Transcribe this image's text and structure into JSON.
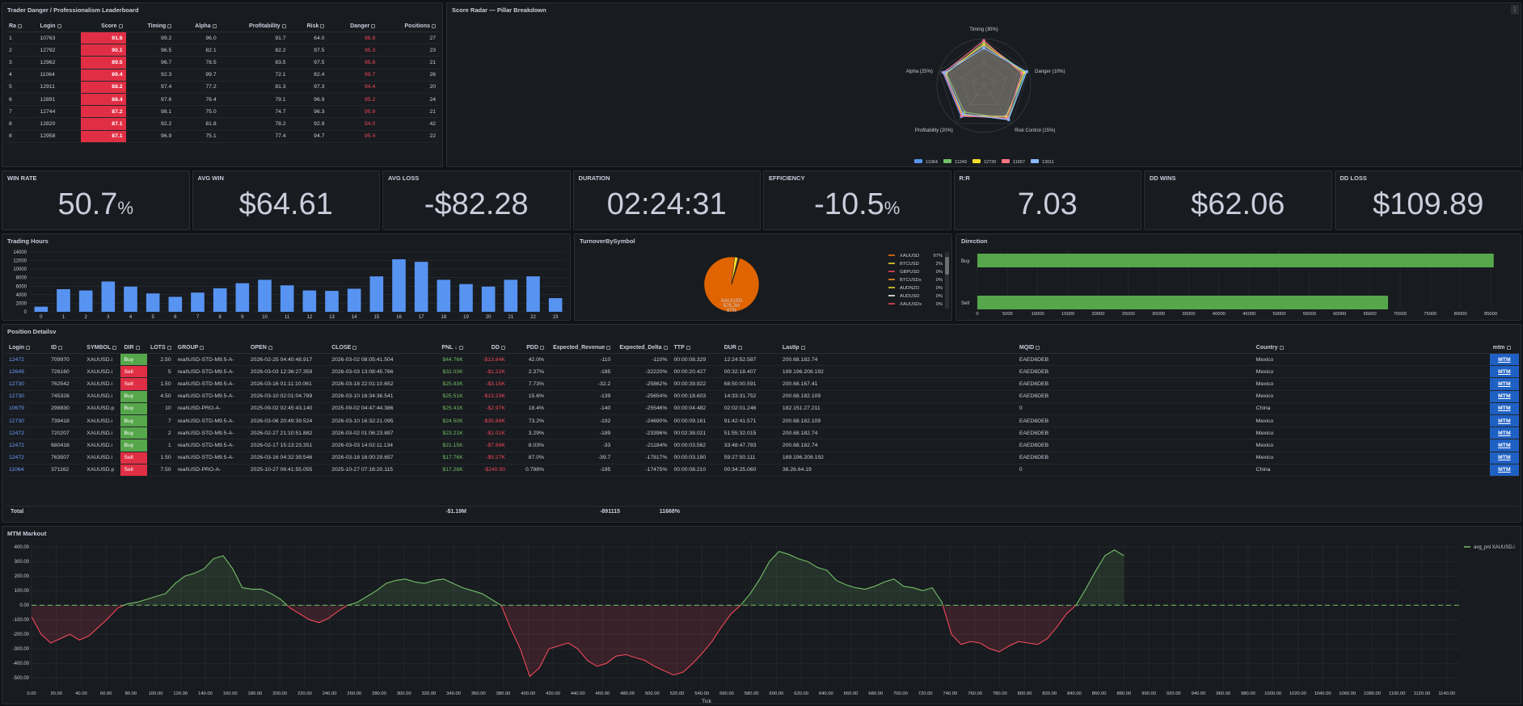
{
  "leaderboard": {
    "title": "Trader Danger / Professionalism Leaderboard",
    "columns": [
      "Ra",
      "Login",
      "Score",
      "Timing",
      "Alpha",
      "Profitability",
      "Risk",
      "Danger",
      "Positions"
    ],
    "rows": [
      [
        "1",
        "10763",
        "91.6",
        "99.2",
        "96.0",
        "91.7",
        "64.0",
        "98.8",
        "27"
      ],
      [
        "2",
        "12792",
        "90.1",
        "96.5",
        "82.1",
        "82.2",
        "97.5",
        "95.3",
        "23"
      ],
      [
        "3",
        "12962",
        "89.5",
        "96.7",
        "78.5",
        "83.5",
        "97.5",
        "95.8",
        "21"
      ],
      [
        "4",
        "11064",
        "89.4",
        "92.3",
        "99.7",
        "72.1",
        "82.4",
        "99.7",
        "26"
      ],
      [
        "5",
        "12911",
        "88.2",
        "97.4",
        "77.2",
        "81.3",
        "97.3",
        "94.4",
        "20"
      ],
      [
        "6",
        "12891",
        "88.4",
        "97.6",
        "76.4",
        "79.1",
        "96.9",
        "95.2",
        "24"
      ],
      [
        "7",
        "12744",
        "87.2",
        "98.1",
        "75.0",
        "74.7",
        "96.3",
        "95.9",
        "21"
      ],
      [
        "8",
        "12820",
        "87.1",
        "92.2",
        "81.8",
        "78.2",
        "92.9",
        "54.0",
        "42"
      ],
      [
        "8",
        "12958",
        "87.1",
        "96.9",
        "75.1",
        "77.4",
        "94.7",
        "95.4",
        "22"
      ]
    ],
    "colors": {
      "score_bg": "#e02f44",
      "danger_text": "#f2495c"
    }
  },
  "radar": {
    "title": "Score Radar — Pillar Breakdown",
    "axes": [
      "Timing (30%)",
      "Danger (10%)",
      "Risk Control (15%)",
      "Profitability (20%)",
      "Alpha (25%)"
    ],
    "legend": [
      {
        "name": "11064",
        "color": "#5794f2"
      },
      {
        "name": "11249",
        "color": "#73bf69"
      },
      {
        "name": "12730",
        "color": "#fade2a"
      },
      {
        "name": "11657",
        "color": "#ff7383"
      },
      {
        "name": "13011",
        "color": "#8ab8ff"
      }
    ],
    "series": [
      {
        "name": "11064",
        "color": "#5794f2",
        "values": [
          0.85,
          0.95,
          0.8,
          0.82,
          0.92
        ]
      },
      {
        "name": "11249",
        "color": "#73bf69",
        "values": [
          0.92,
          0.92,
          0.88,
          0.7,
          0.84
        ]
      },
      {
        "name": "12730",
        "color": "#fade2a",
        "values": [
          0.88,
          0.9,
          0.82,
          0.78,
          0.86
        ]
      },
      {
        "name": "11657",
        "color": "#ff7383",
        "values": [
          0.96,
          0.85,
          0.86,
          0.8,
          0.9
        ]
      },
      {
        "name": "13011",
        "color": "#8ab8ff",
        "values": [
          0.8,
          0.96,
          0.9,
          0.75,
          0.88
        ]
      }
    ]
  },
  "stats": [
    {
      "label": "WIN RATE",
      "value": "50.7",
      "unit": "%"
    },
    {
      "label": "AVG WIN",
      "value": "$64.61",
      "unit": ""
    },
    {
      "label": "AVG LOSS",
      "value": "-$82.28",
      "unit": ""
    },
    {
      "label": "DURATION",
      "value": "02:24:31",
      "unit": ""
    },
    {
      "label": "EFFICIENCY",
      "value": "-10.5",
      "unit": "%"
    },
    {
      "label": "R:R",
      "value": "7.03",
      "unit": ""
    },
    {
      "label": "DD WINS",
      "value": "$62.06",
      "unit": ""
    },
    {
      "label": "DD LOSS",
      "value": "$109.89",
      "unit": ""
    }
  ],
  "trading_hours": {
    "title": "Trading Hours",
    "chart_data": {
      "type": "bar",
      "categories": [
        "0",
        "1",
        "2",
        "3",
        "4",
        "5",
        "6",
        "7",
        "8",
        "9",
        "10",
        "11",
        "12",
        "13",
        "14",
        "15",
        "16",
        "17",
        "18",
        "19",
        "20",
        "21",
        "22",
        "23"
      ],
      "values": [
        1200,
        5300,
        5000,
        7100,
        5900,
        4300,
        3500,
        4500,
        5500,
        6700,
        7500,
        6200,
        5000,
        4900,
        5400,
        8300,
        12300,
        11700,
        7500,
        6500,
        5900,
        7500,
        8300,
        3200
      ],
      "yticks": [
        "0",
        "2000",
        "4000",
        "6000",
        "8000",
        "10000",
        "12000",
        "14000"
      ],
      "ylim": [
        0,
        14000
      ],
      "color": "#5794f2"
    }
  },
  "turnover": {
    "title": "TurnoverBySymbol",
    "center_label": "XAUUSD",
    "center_value": "$76.2M",
    "center_pct": "97%",
    "chart_data": {
      "type": "pie",
      "labels": [
        "XAUUSD",
        "BTCUSD",
        "GBPUSD",
        "BTCUSDx",
        "AUDNZD",
        "AUDUSD",
        "XAUUSDx"
      ],
      "values": [
        97,
        2,
        0.3,
        0.2,
        0.2,
        0.2,
        0.1
      ]
    },
    "legend": [
      {
        "name": "XAUUSD",
        "pct": "97%",
        "color": "#ff780a"
      },
      {
        "name": "BTCUSD",
        "pct": "2%",
        "color": "#fade2a"
      },
      {
        "name": "GBPUSD",
        "pct": "0%",
        "color": "#f2495c"
      },
      {
        "name": "BTCUSDx",
        "pct": "0%",
        "color": "#ff9830"
      },
      {
        "name": "AUDNZD",
        "pct": "0%",
        "color": "#fade2a"
      },
      {
        "name": "AUDUSD",
        "pct": "0%",
        "color": "#ffffff"
      },
      {
        "name": "XAUUSDx",
        "pct": "0%",
        "color": "#f2495c"
      }
    ]
  },
  "direction": {
    "title": "Direction",
    "chart_data": {
      "type": "bar",
      "categories": [
        "Buy",
        "Sell"
      ],
      "values": [
        85500,
        68000
      ],
      "xticks": [
        "0",
        "5000",
        "10000",
        "15000",
        "20000",
        "25000",
        "30000",
        "35000",
        "40000",
        "45000",
        "50000",
        "55000",
        "60000",
        "65000",
        "70000",
        "75000",
        "80000",
        "85000"
      ],
      "xlim": [
        0,
        87000
      ],
      "color": "#56a64b"
    }
  },
  "positions": {
    "title": "Position Detailsv",
    "columns": [
      "Login",
      "ID",
      "SYMBOL",
      "DIR",
      "LOTS",
      "GROUP",
      "OPEN",
      "CLOSE",
      "PNL",
      "DD",
      "PDD",
      "Expected_Revenue",
      "Expected_Delta",
      "TTP",
      "DUR",
      "LastIp",
      "MQID",
      "Country",
      "mtm"
    ],
    "rows": [
      [
        "12472",
        "709970",
        "XAUUSD.i",
        "Buy",
        "2.50",
        "real\\USD-STD-M9.5-A-",
        "2026-02-25 04:40:48.917",
        "2026-03-02 08:05:41.504",
        "$44.76K",
        "-$13.84K",
        "42.0%",
        "-110",
        "-110%",
        "00:00:08.329",
        "12:24:52.587",
        "200.68.182.74",
        "EAED6DEB",
        "Mexico",
        "MTM"
      ],
      [
        "12649",
        "726160",
        "XAUUSD.i",
        "Sell",
        "5",
        "real\\USD-STD-M9.5-A-",
        "2026-03-03 12:36:27.359",
        "2026-03-03 13:08:45.766",
        "$32.03K",
        "-$1.22K",
        "2.37%",
        "-185",
        "-32220%",
        "00:00:20.427",
        "00:32:18.407",
        "189.196.208.192",
        "EAED6DEB",
        "Mexico",
        "MTM"
      ],
      [
        "12730",
        "762542",
        "XAUUSD.i",
        "Sell",
        "1.50",
        "real\\USD-STD-M9.5-A-",
        "2026-03-16 01:11:10.061",
        "2026-03-18 22:01:10.652",
        "$25.83K",
        "-$3.15K",
        "7.73%",
        "-32.2",
        "-25862%",
        "00:00:39.922",
        "68:50:00.591",
        "200.68.167.41",
        "EAED6DEB",
        "Mexico",
        "MTM"
      ],
      [
        "12730",
        "745328",
        "XAUUSD.i",
        "Buy",
        "4.50",
        "real\\USD-STD-M9.5-A-",
        "2026-03-10 02:01:04.789",
        "2026-03-10 16:34:36.541",
        "$25.51K",
        "-$13.23K",
        "15.6%",
        "-139",
        "-25654%",
        "00:00:18.603",
        "14:33:31.752",
        "200.68.182.109",
        "EAED6DEB",
        "Mexico",
        "MTM"
      ],
      [
        "10679",
        "298830",
        "XAUUSD.p",
        "Buy",
        "10",
        "real\\USD-PRO-A-",
        "2025-09-02 02:45:43.140",
        "2025-09-02 04:47:44.386",
        "$25.41K",
        "-$2.97K",
        "18.4%",
        "-140",
        "-25546%",
        "00:00:04.482",
        "02:02:01.246",
        "182.151.27.211",
        "0",
        "China",
        "MTM"
      ],
      [
        "12730",
        "739418",
        "XAUUSD.i",
        "Buy",
        "7",
        "real\\USD-STD-M9.5-A-",
        "2026-03-06 20:49:39.524",
        "2026-03-10 16:32:21.095",
        "$24.50K",
        "-$35.89K",
        "73.2%",
        "-192",
        "-24690%",
        "00:00:09.161",
        "91:42:41.571",
        "200.68.182.109",
        "EAED6DEB",
        "Mexico",
        "MTM"
      ],
      [
        "12472",
        "720207",
        "XAUUSD.i",
        "Buy",
        "2",
        "real\\USD-STD-M9.5-A-",
        "2026-02-27 21:10:51.882",
        "2026-03-02 01:06:23.897",
        "$23.21K",
        "-$1.01K",
        "3.29%",
        "-189",
        "-23396%",
        "00:02:38.021",
        "51:55:32.015",
        "200.68.182.74",
        "EAED6DEB",
        "Mexico",
        "MTM"
      ],
      [
        "12472",
        "680416",
        "XAUUSD.i",
        "Buy",
        "1",
        "real\\USD-STD-M9.5-A-",
        "2026-02-17 15:13:23.351",
        "2026-03-03 14:02:11.134",
        "$21.15K",
        "-$7.69K",
        "8.03%",
        "-33",
        "-21184%",
        "00:00:03.562",
        "33:48:47.783",
        "200.68.182.74",
        "EAED6DEB",
        "Mexico",
        "MTM"
      ],
      [
        "12472",
        "763507",
        "XAUUSD.i",
        "Sell",
        "1.50",
        "real\\USD-STD-M9.5-A-",
        "2026-03-16 04:32:39.546",
        "2026-03-18 16:00:29.657",
        "$17.76K",
        "-$9.27K",
        "87.0%",
        "-39.7",
        "-17817%",
        "00:00:03.190",
        "59:27:50.111",
        "189.196.208.192",
        "EAED6DEB",
        "Mexico",
        "MTM"
      ],
      [
        "11064",
        "371162",
        "XAUUSD.p",
        "Sell",
        "7.50",
        "real\\USD-PRO-A-",
        "2025-10-27 06:41:55.055",
        "2025-10-27 07:16:20.115",
        "$17.28K",
        "-$240.00",
        "0.798%",
        "-195",
        "-17475%",
        "00:00:08.210",
        "00:34:25.060",
        "36.26.64.19",
        "0",
        "China",
        "MTM"
      ]
    ],
    "total_label": "Total",
    "total_pnl": "-$1.19M",
    "total_expected_revenue": "-891115",
    "total_expected_delta": "11668%"
  },
  "mtm": {
    "title": "MTM Markout",
    "legend": "avg_pnl XAUUSD.i",
    "xlabel": "Tick",
    "chart_data": {
      "type": "line",
      "series_name": "avg_pnl XAUUSD.i",
      "x_step": 20,
      "xticks": [
        "0.00",
        "20.00",
        "40.00",
        "60.00",
        "80.00",
        "100.00",
        "120.00",
        "140.00",
        "160.00",
        "180.00",
        "200.00",
        "220.00",
        "240.00",
        "260.00",
        "280.00",
        "300.00",
        "320.00",
        "340.00",
        "360.00",
        "380.00",
        "400.00",
        "420.00",
        "440.00",
        "460.00",
        "480.00",
        "500.00",
        "520.00",
        "540.00",
        "560.00",
        "580.00",
        "600.00",
        "620.00",
        "640.00",
        "660.00",
        "680.00",
        "700.00",
        "720.00",
        "740.00",
        "760.00",
        "780.00",
        "800.00",
        "820.00",
        "840.00",
        "860.00",
        "880.00",
        "900.00",
        "920.00",
        "940.00",
        "960.00",
        "980.00",
        "1000.00",
        "1020.00",
        "1040.00",
        "1060.00",
        "1080.00",
        "1100.00",
        "1120.00",
        "1140.00"
      ],
      "yticks": [
        "400.00",
        "300.00",
        "200.00",
        "100.00",
        "0.00",
        "-100.00",
        "-200.00",
        "-300.00",
        "-400.00",
        "-500.00"
      ],
      "ylim": [
        -560,
        440
      ],
      "xlim": [
        0,
        1150
      ],
      "values": [
        -80,
        -200,
        -260,
        -230,
        -200,
        -240,
        -210,
        -150,
        -90,
        -20,
        10,
        20,
        40,
        60,
        80,
        150,
        200,
        220,
        250,
        320,
        340,
        250,
        120,
        110,
        110,
        80,
        40,
        -20,
        -60,
        -100,
        -120,
        -90,
        -40,
        0,
        20,
        60,
        100,
        150,
        170,
        180,
        160,
        150,
        170,
        180,
        150,
        120,
        100,
        80,
        40,
        0,
        -160,
        -300,
        -490,
        -430,
        -300,
        -280,
        -260,
        -300,
        -380,
        -420,
        -400,
        -350,
        -340,
        -360,
        -380,
        -420,
        -450,
        -480,
        -460,
        -400,
        -330,
        -250,
        -150,
        -60,
        0,
        80,
        180,
        300,
        370,
        350,
        320,
        300,
        260,
        240,
        170,
        140,
        120,
        110,
        130,
        160,
        180,
        130,
        120,
        100,
        120,
        20,
        -200,
        -270,
        -250,
        -260,
        -300,
        -320,
        -280,
        -250,
        -260,
        -270,
        -230,
        -150,
        -60,
        0,
        110,
        230,
        340,
        380,
        340
      ],
      "colors": {
        "pos": "#73bf69",
        "neg": "#f2495c",
        "zero": "#73bf69"
      }
    }
  }
}
